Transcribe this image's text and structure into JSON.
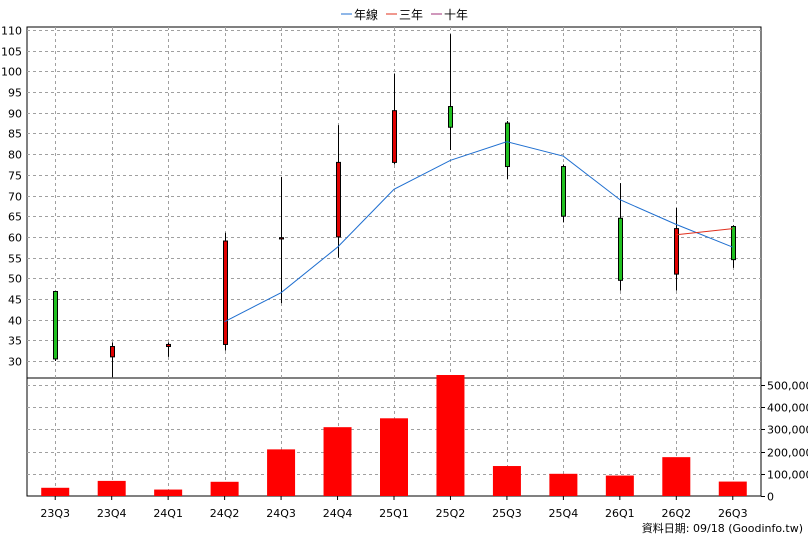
{
  "legend": [
    {
      "label": "年線",
      "color": "#1f6fd0"
    },
    {
      "label": "三年",
      "color": "#e0301e"
    },
    {
      "label": "十年",
      "color": "#a0307a"
    }
  ],
  "footer": "資料日期: 09/18  (Goodinfo.tw)",
  "colors": {
    "up": "#e00000",
    "down": "#20c020",
    "volume": "#ff0000",
    "year_line": "#1f6fd0",
    "three_year_line": "#e0301e"
  },
  "chart_data": {
    "type": "candlestick",
    "categories": [
      "23Q3",
      "23Q4",
      "24Q1",
      "24Q2",
      "24Q3",
      "24Q4",
      "25Q1",
      "25Q2",
      "25Q3",
      "25Q4",
      "26Q1",
      "26Q2",
      "26Q3"
    ],
    "price_axis": {
      "min": 30,
      "max": 110,
      "ticks": [
        30,
        35,
        40,
        45,
        50,
        55,
        60,
        65,
        70,
        75,
        80,
        85,
        90,
        95,
        100,
        105,
        110
      ]
    },
    "volume_axis": {
      "min": 0,
      "max": 500000,
      "ticks": [
        0,
        100000,
        200000,
        300000,
        400000,
        500000
      ],
      "tick_labels": [
        "0",
        "100,000",
        "200,000",
        "300,000",
        "400,000",
        "500,000"
      ]
    },
    "candles": [
      {
        "o": 46.8,
        "h": 47.0,
        "l": 30.0,
        "c": 30.5
      },
      {
        "o": 31.0,
        "h": 34.5,
        "l": 26.0,
        "c": 33.5
      },
      {
        "o": 33.5,
        "h": 34.5,
        "l": 31.0,
        "c": 34.0
      },
      {
        "o": 34.0,
        "h": 61.0,
        "l": 32.5,
        "c": 59.0
      },
      {
        "o": 59.5,
        "h": 74.5,
        "l": 44.0,
        "c": 59.8
      },
      {
        "o": 60.0,
        "h": 87.0,
        "l": 55.0,
        "c": 78.0
      },
      {
        "o": 78.0,
        "h": 99.5,
        "l": 77.5,
        "c": 90.5
      },
      {
        "o": 91.5,
        "h": 109.0,
        "l": 81.0,
        "c": 86.5
      },
      {
        "o": 87.5,
        "h": 88.0,
        "l": 74.0,
        "c": 77.0
      },
      {
        "o": 77.0,
        "h": 77.5,
        "l": 63.5,
        "c": 65.0
      },
      {
        "o": 64.5,
        "h": 73.0,
        "l": 47.0,
        "c": 49.5
      },
      {
        "o": 51.0,
        "h": 67.0,
        "l": 47.0,
        "c": 62.0
      },
      {
        "o": 62.5,
        "h": 62.8,
        "l": 52.5,
        "c": 54.5
      }
    ],
    "series": [
      {
        "name": "年線",
        "values": [
          null,
          null,
          null,
          39.5,
          46.5,
          57.5,
          71.5,
          78.5,
          83.0,
          79.5,
          69.0,
          63.0,
          57.5
        ]
      },
      {
        "name": "三年",
        "values": [
          null,
          null,
          null,
          null,
          null,
          null,
          null,
          null,
          null,
          null,
          null,
          60.5,
          62.0
        ]
      },
      {
        "name": "十年",
        "values": [
          null,
          null,
          null,
          null,
          null,
          null,
          null,
          null,
          null,
          null,
          null,
          null,
          null
        ]
      }
    ],
    "volume": [
      37000,
      68000,
      29000,
      64000,
      210000,
      310000,
      350000,
      545000,
      135000,
      100000,
      92000,
      175000,
      65000
    ]
  }
}
